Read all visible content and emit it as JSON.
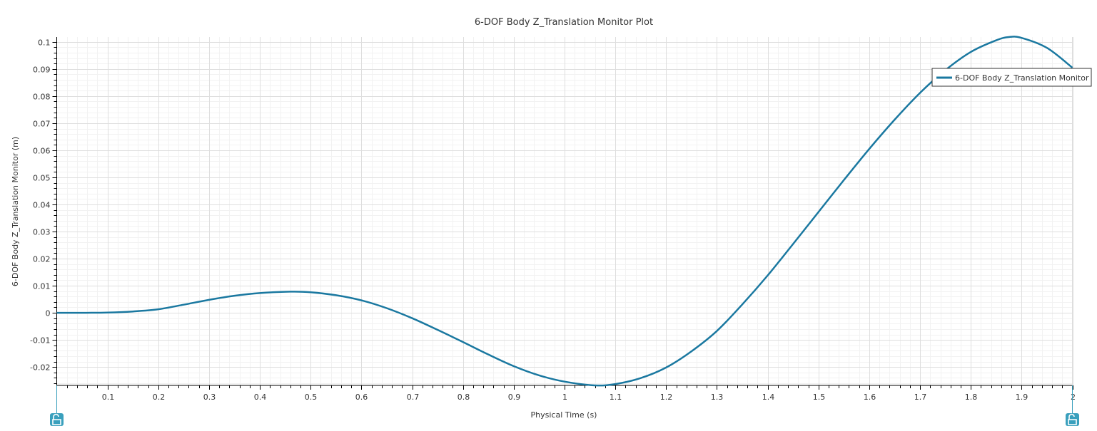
{
  "chart_data": {
    "type": "line",
    "title": "6-DOF Body Z_Translation Monitor Plot",
    "xlabel": "Physical Time (s)",
    "ylabel": "6-DOF Body Z_Translation Monitor (m)",
    "xlim": [
      0,
      2
    ],
    "ylim": [
      -0.0268,
      0.1018
    ],
    "x_ticks": [
      0.1,
      0.2,
      0.3,
      0.4,
      0.5,
      0.6,
      0.7,
      0.8,
      0.9,
      1,
      1.1,
      1.2,
      1.3,
      1.4,
      1.5,
      1.6,
      1.7,
      1.8,
      1.9,
      2
    ],
    "x_tick_labels": [
      "0.1",
      "0.2",
      "0.3",
      "0.4",
      "0.5",
      "0.6",
      "0.7",
      "0.8",
      "0.9",
      "1",
      "1.1",
      "1.2",
      "1.3",
      "1.4",
      "1.5",
      "1.6",
      "1.7",
      "1.8",
      "1.9",
      "2"
    ],
    "y_ticks": [
      -0.02,
      -0.01,
      0,
      0.01,
      0.02,
      0.03,
      0.04,
      0.05,
      0.06,
      0.07,
      0.08,
      0.09,
      0.1
    ],
    "y_tick_labels": [
      "-0.02",
      "-0.01",
      "0",
      "0.01",
      "0.02",
      "0.03",
      "0.04",
      "0.05",
      "0.06",
      "0.07",
      "0.08",
      "0.09",
      "0.1"
    ],
    "grid": true,
    "legend_position": "top-right",
    "series": [
      {
        "name": "6-DOF Body Z_Translation Monitor",
        "color": "#1a78a0",
        "x": [
          0,
          0.05,
          0.1,
          0.15,
          0.2,
          0.25,
          0.3,
          0.35,
          0.4,
          0.46,
          0.5,
          0.55,
          0.6,
          0.65,
          0.7,
          0.75,
          0.8,
          0.85,
          0.9,
          0.95,
          1.0,
          1.06,
          1.1,
          1.15,
          1.2,
          1.25,
          1.3,
          1.35,
          1.4,
          1.45,
          1.5,
          1.55,
          1.6,
          1.65,
          1.7,
          1.75,
          1.8,
          1.85,
          1.875,
          1.9,
          1.95,
          2.0
        ],
        "y": [
          0,
          0,
          0.0001,
          0.0005,
          0.0013,
          0.003,
          0.0048,
          0.0063,
          0.0073,
          0.0078,
          0.0076,
          0.0065,
          0.0046,
          0.0017,
          -0.002,
          -0.0063,
          -0.0108,
          -0.0154,
          -0.0197,
          -0.0231,
          -0.0254,
          -0.0268,
          -0.0263,
          -0.0241,
          -0.0202,
          -0.0142,
          -0.0067,
          0.0031,
          0.0138,
          0.0254,
          0.0372,
          0.049,
          0.0605,
          0.0713,
          0.0812,
          0.0896,
          0.0963,
          0.1006,
          0.1018,
          0.1015,
          0.0978,
          0.0905
        ]
      }
    ]
  }
}
